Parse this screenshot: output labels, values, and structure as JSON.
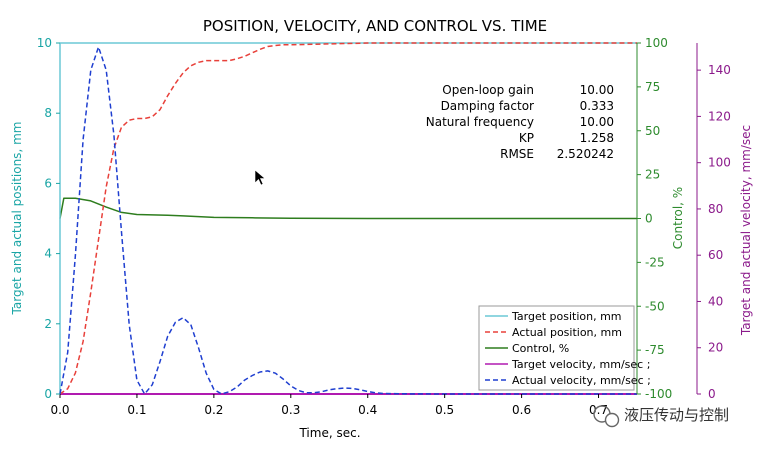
{
  "colors": {
    "position_axis": "#1aa5a5",
    "control_axis": "#2e8b2e",
    "velocity_axis": "#8b1a8b",
    "target_position": "#6cc9d6",
    "actual_position": "#e8403a",
    "control": "#2e7d1e",
    "target_velocity": "#b01ab0",
    "actual_velocity": "#1f3fd0"
  },
  "annotations": {
    "labels": [
      "Open-loop gain",
      "Damping factor",
      "Natural frequency",
      "KP",
      "RMSE"
    ],
    "values": [
      "10.00",
      "0.333",
      "10.00",
      "1.258",
      "2.520242"
    ]
  },
  "watermark": {
    "text": "液压传动与控制"
  },
  "chart_data": {
    "type": "line",
    "title": "POSITION, VELOCITY, AND CONTROL VS. TIME",
    "xlabel": "Time, sec.",
    "xlim": [
      0,
      0.75
    ],
    "x_ticks": [
      "0.0",
      "0.1",
      "0.2",
      "0.3",
      "0.4",
      "0.5",
      "0.6",
      "0.7"
    ],
    "axes": {
      "left": {
        "label": "Target and actual positions, mm",
        "ylim": [
          0,
          10
        ],
        "ticks": [
          "0",
          "2",
          "4",
          "6",
          "8",
          "10"
        ]
      },
      "control": {
        "label": "Control, %",
        "ylim": [
          -100,
          100
        ],
        "ticks": [
          "-100",
          "-75",
          "-50",
          "-25",
          "0",
          "25",
          "50",
          "75",
          "100"
        ]
      },
      "velocity": {
        "label": "Target and actual velocity, mm/sec",
        "ylim": [
          0,
          150
        ],
        "ticks": [
          "0",
          "20",
          "40",
          "60",
          "80",
          "100",
          "120",
          "140"
        ]
      }
    },
    "legend_placement": "bottom-right",
    "series": [
      {
        "name": "Target position, mm",
        "axis": "left",
        "style": "solid",
        "x": [
          0.0,
          0.0,
          0.75
        ],
        "y": [
          0.0,
          10.0,
          10.0
        ]
      },
      {
        "name": "Actual position, mm",
        "axis": "left",
        "style": "dashed",
        "x": [
          0.0,
          0.01,
          0.02,
          0.03,
          0.04,
          0.05,
          0.06,
          0.07,
          0.08,
          0.09,
          0.1,
          0.11,
          0.12,
          0.13,
          0.14,
          0.15,
          0.16,
          0.17,
          0.18,
          0.19,
          0.2,
          0.21,
          0.22,
          0.23,
          0.24,
          0.25,
          0.26,
          0.27,
          0.28,
          0.29,
          0.3,
          0.32,
          0.34,
          0.36,
          0.38,
          0.4,
          0.45,
          0.5,
          0.55,
          0.6,
          0.65,
          0.7,
          0.75
        ],
        "y": [
          0.0,
          0.15,
          0.6,
          1.5,
          2.9,
          4.4,
          5.9,
          7.0,
          7.6,
          7.8,
          7.85,
          7.85,
          7.9,
          8.1,
          8.5,
          8.85,
          9.15,
          9.35,
          9.45,
          9.5,
          9.5,
          9.5,
          9.5,
          9.55,
          9.62,
          9.72,
          9.82,
          9.9,
          9.93,
          9.95,
          9.95,
          9.96,
          9.97,
          9.98,
          9.99,
          10.0,
          10.0,
          10.0,
          10.0,
          10.0,
          10.0,
          10.0,
          10.0
        ]
      },
      {
        "name": "Control, %",
        "axis": "control",
        "style": "solid",
        "x": [
          0.0,
          0.005,
          0.02,
          0.04,
          0.06,
          0.08,
          0.1,
          0.14,
          0.16,
          0.2,
          0.25,
          0.3,
          0.4,
          0.5,
          0.6,
          0.75
        ],
        "y": [
          0.0,
          11.5,
          11.5,
          10.0,
          6.5,
          3.5,
          2.3,
          1.8,
          1.5,
          0.6,
          0.4,
          0.1,
          0.0,
          0.0,
          0.0,
          0.0
        ]
      },
      {
        "name": "Target velocity, mm/sec ;",
        "axis": "velocity",
        "style": "solid",
        "x": [
          0.0,
          0.75
        ],
        "y": [
          0.0,
          0.0
        ]
      },
      {
        "name": "Actual velocity, mm/sec ;",
        "axis": "velocity",
        "style": "dashed",
        "x": [
          0.0,
          0.01,
          0.02,
          0.03,
          0.04,
          0.05,
          0.06,
          0.07,
          0.08,
          0.09,
          0.1,
          0.11,
          0.12,
          0.13,
          0.14,
          0.15,
          0.16,
          0.17,
          0.18,
          0.19,
          0.2,
          0.21,
          0.22,
          0.23,
          0.24,
          0.25,
          0.26,
          0.27,
          0.28,
          0.29,
          0.3,
          0.31,
          0.32,
          0.33,
          0.34,
          0.35,
          0.36,
          0.37,
          0.38,
          0.39,
          0.4,
          0.41,
          0.42,
          0.45,
          0.5,
          0.6,
          0.75
        ],
        "y": [
          0,
          18,
          60,
          110,
          140,
          150,
          140,
          112,
          70,
          30,
          6,
          0,
          4,
          14,
          25,
          31,
          33,
          30,
          20,
          9,
          2,
          0,
          1,
          3,
          6,
          8,
          9.5,
          10,
          9,
          6.5,
          3.5,
          1.5,
          0.5,
          0.5,
          1,
          1.8,
          2.3,
          2.6,
          2.4,
          1.8,
          1.1,
          0.5,
          0.2,
          0.1,
          0,
          0,
          0
        ]
      }
    ]
  }
}
